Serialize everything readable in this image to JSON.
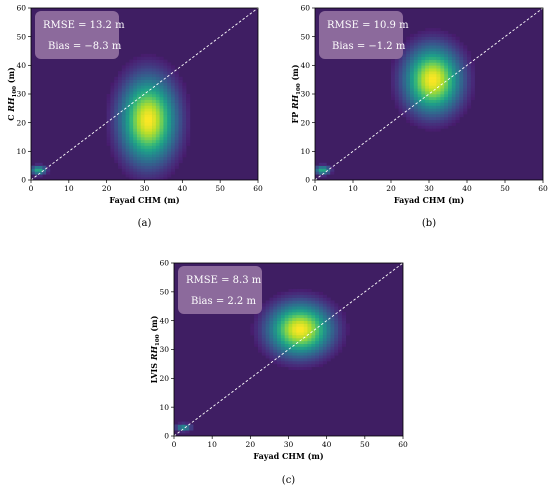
{
  "chart_data": [
    {
      "type": "heatmap",
      "panel_label": "(a)",
      "xlabel": "Fayad CHM (m)",
      "ylabel_prefix": "C ",
      "ylabel_var": "RH",
      "ylabel_sub": "100",
      "ylabel_suffix": " (m)",
      "xlim": [
        0,
        60
      ],
      "ylim": [
        0,
        60
      ],
      "xticks": [
        0,
        10,
        20,
        30,
        40,
        50,
        60
      ],
      "yticks": [
        0,
        10,
        20,
        30,
        40,
        50,
        60
      ],
      "one_to_one_line": true,
      "density_peaks": [
        {
          "x": 31,
          "y": 21,
          "sx": 4.5,
          "sy": 9,
          "w": 1.0
        },
        {
          "x": 2,
          "y": 3.5,
          "sx": 1.3,
          "sy": 1.0,
          "w": 0.55
        }
      ],
      "stats": {
        "rmse": "RMSE = 13.2 m",
        "bias": "Bias = −8.3 m"
      }
    },
    {
      "type": "heatmap",
      "panel_label": "(b)",
      "xlabel": "Fayad CHM (m)",
      "ylabel_prefix": "FP ",
      "ylabel_var": "RH",
      "ylabel_sub": "100",
      "ylabel_suffix": " (m)",
      "xlim": [
        0,
        60
      ],
      "ylim": [
        0,
        60
      ],
      "xticks": [
        0,
        10,
        20,
        30,
        40,
        50,
        60
      ],
      "yticks": [
        0,
        10,
        20,
        30,
        40,
        50,
        60
      ],
      "one_to_one_line": true,
      "density_peaks": [
        {
          "x": 31,
          "y": 35,
          "sx": 4.5,
          "sy": 7,
          "w": 1.0
        },
        {
          "x": 2,
          "y": 3.5,
          "sx": 1.3,
          "sy": 1.0,
          "w": 0.55
        }
      ],
      "stats": {
        "rmse": "RMSE = 10.9 m",
        "bias": "Bias = −1.2 m"
      }
    },
    {
      "type": "heatmap",
      "panel_label": "(c)",
      "xlabel": "Fayad CHM (m)",
      "ylabel_prefix": "LVIS ",
      "ylabel_var": "RH",
      "ylabel_sub": "100",
      "ylabel_suffix": " (m)",
      "xlim": [
        0,
        60
      ],
      "ylim": [
        0,
        60
      ],
      "xticks": [
        0,
        10,
        20,
        30,
        40,
        50,
        60
      ],
      "yticks": [
        0,
        10,
        20,
        30,
        40,
        50,
        60
      ],
      "one_to_one_line": true,
      "density_peaks": [
        {
          "x": 33,
          "y": 37,
          "sx": 5,
          "sy": 5.5,
          "w": 1.0
        },
        {
          "x": 2.5,
          "y": 3,
          "sx": 1.3,
          "sy": 0.8,
          "w": 0.45
        }
      ],
      "stats": {
        "rmse": "RMSE = 8.3 m",
        "bias": "Bias = 2.2 m"
      }
    }
  ],
  "colors": {
    "background": "#3f1e63",
    "stats_box": "#8c6a9c",
    "line": "#ffffff"
  },
  "colormap": "viridis"
}
